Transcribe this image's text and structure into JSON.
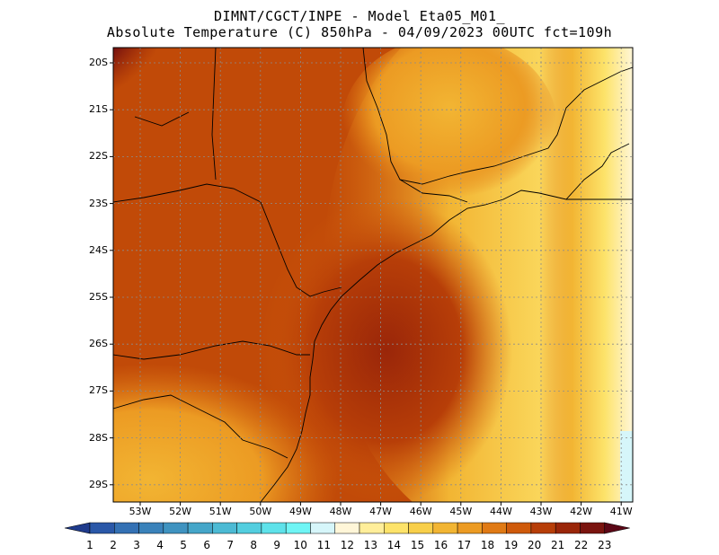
{
  "title": {
    "line1": "DIMNT/CGCT/INPE -  Model Eta05_M01_",
    "line2": "Absolute Temperature (C) 850hPa -  04/09/2023 00UTC fct=109h"
  },
  "axes": {
    "lat_labels": [
      "20S",
      "21S",
      "22S",
      "23S",
      "24S",
      "25S",
      "26S",
      "27S",
      "28S",
      "29S"
    ],
    "lon_labels": [
      "53W",
      "52W",
      "51W",
      "50W",
      "49W",
      "48W",
      "47W",
      "46W",
      "45W",
      "44W",
      "43W",
      "42W",
      "41W"
    ]
  },
  "colorbar": {
    "labels": [
      "1",
      "2",
      "3",
      "4",
      "5",
      "6",
      "7",
      "8",
      "9",
      "10",
      "11",
      "12",
      "13",
      "14",
      "15",
      "16",
      "17",
      "18",
      "19",
      "20",
      "21",
      "22",
      "23"
    ],
    "colors": [
      "#1f3b8c",
      "#2a58a8",
      "#3471b4",
      "#3a82ba",
      "#3f93c0",
      "#45a6c9",
      "#4cbad4",
      "#53cedf",
      "#5ee2ea",
      "#6ff5f5",
      "#d6f6fa",
      "#fff6d8",
      "#ffee9a",
      "#fde36a",
      "#f8cf4a",
      "#f2b533",
      "#ec9b23",
      "#e07a15",
      "#cf5a0b",
      "#b73e08",
      "#9a2609",
      "#7a140f",
      "#5c0716"
    ]
  },
  "colors": {
    "coast": "#000000",
    "grid": "#8c8c8c"
  }
}
